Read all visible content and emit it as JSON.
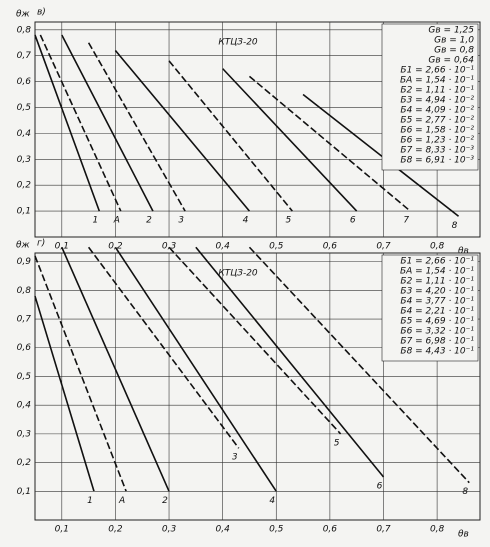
{
  "chart_data": [
    {
      "type": "line",
      "panel_label": "в)",
      "annotation": "КТЦЗ-20",
      "ylabel": "θж",
      "xlabel": "θв",
      "grid": true,
      "xlim": [
        0.05,
        0.88
      ],
      "ylim": [
        0,
        0.83
      ],
      "xticks": [
        {
          "value": 0.1,
          "label": "0,1"
        },
        {
          "value": 0.2,
          "label": "0,2"
        },
        {
          "value": 0.3,
          "label": "0,3"
        },
        {
          "value": 0.4,
          "label": "0,4"
        },
        {
          "value": 0.5,
          "label": "0,5"
        },
        {
          "value": 0.6,
          "label": "0,6"
        },
        {
          "value": 0.7,
          "label": "0,7"
        },
        {
          "value": 0.8,
          "label": "0,8"
        }
      ],
      "yticks": [
        {
          "value": 0.1,
          "label": "0,1"
        },
        {
          "value": 0.2,
          "label": "0,2"
        },
        {
          "value": 0.3,
          "label": "0,3"
        },
        {
          "value": 0.4,
          "label": "0,4"
        },
        {
          "value": 0.5,
          "label": "0,5"
        },
        {
          "value": 0.6,
          "label": "0,6"
        },
        {
          "value": 0.7,
          "label": "0,7"
        },
        {
          "value": 0.8,
          "label": "0,8"
        }
      ],
      "legend": [
        "Gв = 1,25",
        "Gв = 1,0",
        "Gв = 0,8",
        "Gв = 0,64",
        "Б1 = 2,66 · 10⁻¹",
        "БА = 1,54 · 10⁻¹",
        "Б2 = 1,11 · 10⁻¹",
        "Б3 = 4,94 · 10⁻²",
        "Б4 = 4,09 · 10⁻²",
        "Б5 = 2,77 · 10⁻²",
        "Б6 = 1,58 · 10⁻²",
        "Б6 = 1,23 · 10⁻²",
        "Б7 = 8,33 · 10⁻³",
        "Б8 = 6,91 · 10⁻³"
      ],
      "series": [
        {
          "name": "1",
          "color": "#111",
          "x": [
            0.05,
            0.17
          ],
          "values": [
            0.78,
            0.1
          ]
        },
        {
          "name": "А",
          "color": "#111",
          "x": [
            0.06,
            0.21
          ],
          "values": [
            0.78,
            0.1
          ]
        },
        {
          "name": "2",
          "color": "#111",
          "x": [
            0.1,
            0.27
          ],
          "values": [
            0.78,
            0.1
          ]
        },
        {
          "name": "3",
          "color": "#111",
          "x": [
            0.15,
            0.33
          ],
          "values": [
            0.75,
            0.1
          ]
        },
        {
          "name": "4",
          "color": "#111",
          "x": [
            0.2,
            0.45
          ],
          "values": [
            0.72,
            0.1
          ]
        },
        {
          "name": "5",
          "color": "#111",
          "x": [
            0.3,
            0.53
          ],
          "values": [
            0.68,
            0.1
          ]
        },
        {
          "name": "6",
          "color": "#111",
          "x": [
            0.4,
            0.65
          ],
          "values": [
            0.65,
            0.1
          ]
        },
        {
          "name": "7",
          "color": "#111",
          "x": [
            0.45,
            0.75
          ],
          "values": [
            0.62,
            0.1
          ]
        },
        {
          "name": "8",
          "color": "#111",
          "x": [
            0.55,
            0.84
          ],
          "values": [
            0.55,
            0.08
          ]
        }
      ]
    },
    {
      "type": "line",
      "panel_label": "г)",
      "annotation": "КТЦЗ-20",
      "ylabel": "θж",
      "xlabel": "θв",
      "grid": true,
      "xlim": [
        0.05,
        0.88
      ],
      "ylim": [
        0,
        0.93
      ],
      "xticks": [
        {
          "value": 0.1,
          "label": "0,1"
        },
        {
          "value": 0.2,
          "label": "0,2"
        },
        {
          "value": 0.3,
          "label": "0,3"
        },
        {
          "value": 0.4,
          "label": "0,4"
        },
        {
          "value": 0.5,
          "label": "0,5"
        },
        {
          "value": 0.6,
          "label": "0,6"
        },
        {
          "value": 0.7,
          "label": "0,7"
        },
        {
          "value": 0.8,
          "label": "0,8"
        }
      ],
      "yticks": [
        {
          "value": 0.1,
          "label": "0,1"
        },
        {
          "value": 0.2,
          "label": "0,2"
        },
        {
          "value": 0.3,
          "label": "0,3"
        },
        {
          "value": 0.4,
          "label": "0,4"
        },
        {
          "value": 0.5,
          "label": "0,5"
        },
        {
          "value": 0.6,
          "label": "0,6"
        },
        {
          "value": 0.7,
          "label": "0,7"
        },
        {
          "value": 0.8,
          "label": "0,8"
        },
        {
          "value": 0.9,
          "label": "0,9"
        }
      ],
      "legend": [
        "Б1 = 2,66 · 10⁻¹",
        "БА = 1,54 · 10⁻¹",
        "Б2 = 1,11 · 10⁻¹",
        "Б3 = 4,20 · 10⁻¹",
        "Б4 = 3,77 · 10⁻¹",
        "Б4 = 2,21 · 10⁻¹",
        "Б5 = 4,69 · 10⁻¹",
        "Б6 = 3,32 · 10⁻¹",
        "Б7 = 6,98 · 10⁻¹",
        "Б8 = 4,43 · 10⁻¹"
      ],
      "series": [
        {
          "name": "1",
          "color": "#111",
          "x": [
            0.05,
            0.16
          ],
          "values": [
            0.78,
            0.1
          ]
        },
        {
          "name": "А",
          "color": "#111",
          "x": [
            0.05,
            0.22
          ],
          "values": [
            0.92,
            0.1
          ]
        },
        {
          "name": "2",
          "color": "#111",
          "x": [
            0.1,
            0.3
          ],
          "values": [
            0.95,
            0.1
          ]
        },
        {
          "name": "3",
          "color": "#111",
          "x": [
            0.15,
            0.43
          ],
          "values": [
            0.95,
            0.25
          ]
        },
        {
          "name": "4",
          "color": "#111",
          "x": [
            0.2,
            0.5
          ],
          "values": [
            0.95,
            0.1
          ]
        },
        {
          "name": "5",
          "color": "#111",
          "x": [
            0.3,
            0.62
          ],
          "values": [
            0.95,
            0.3
          ]
        },
        {
          "name": "6",
          "color": "#111",
          "x": [
            0.35,
            0.7
          ],
          "values": [
            0.95,
            0.15
          ]
        },
        {
          "name": "8",
          "color": "#111",
          "x": [
            0.45,
            0.86
          ],
          "values": [
            0.95,
            0.13
          ]
        }
      ]
    }
  ]
}
